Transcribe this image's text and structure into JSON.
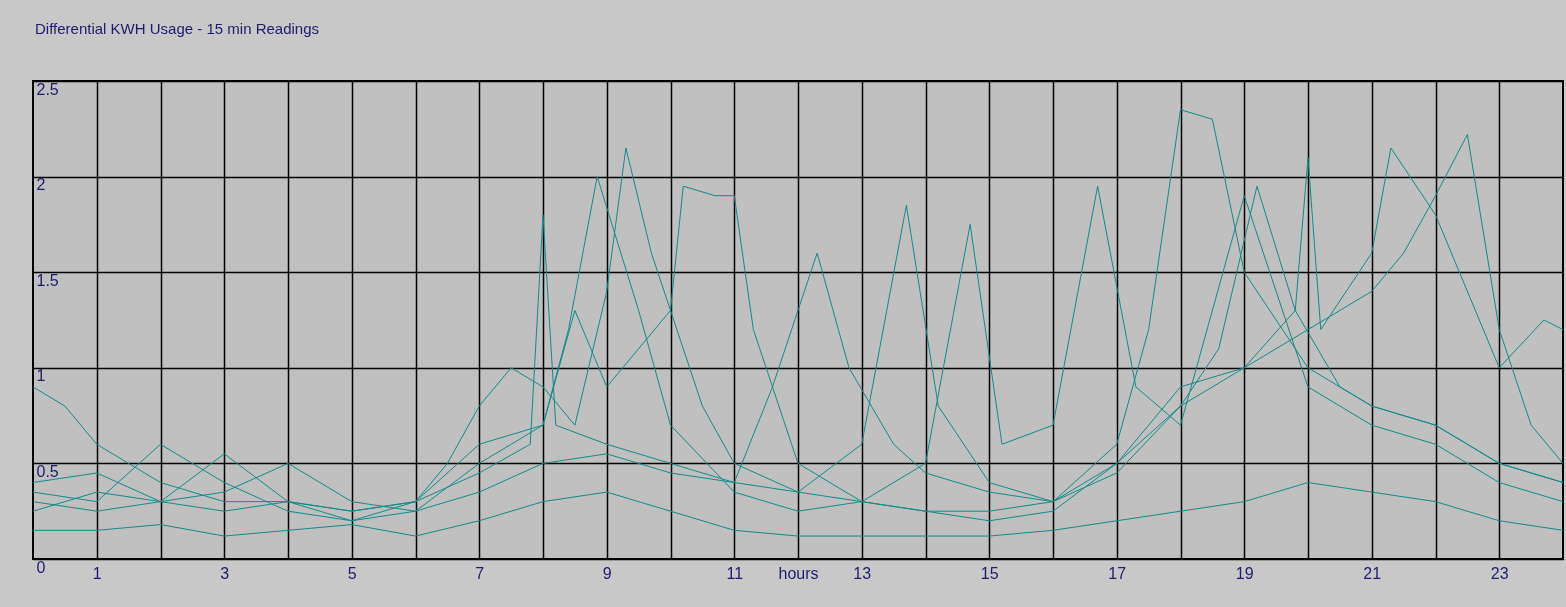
{
  "chart_data": {
    "type": "line",
    "title": "Differential KWH Usage - 15 min Readings",
    "xlabel": "hours",
    "xlim": [
      0,
      24
    ],
    "ylim": [
      0,
      2.5
    ],
    "xticks": [
      1,
      {
        "value": 2,
        "label": null
      },
      3,
      {
        "value": 4,
        "label": null
      },
      5,
      {
        "value": 6,
        "label": null
      },
      7,
      {
        "value": 8,
        "label": null
      },
      9,
      {
        "value": 10,
        "label": null
      },
      11,
      {
        "value": 12,
        "label": null
      },
      13,
      {
        "value": 14,
        "label": null
      },
      15,
      {
        "value": 16,
        "label": null
      },
      17,
      {
        "value": 18,
        "label": null
      },
      19,
      {
        "value": 20,
        "label": null
      },
      21,
      {
        "value": 22,
        "label": null
      },
      23
    ],
    "yticks": [
      0,
      0.5,
      1,
      1.5,
      2,
      2.5
    ],
    "grid": true,
    "legend": false,
    "marker": "none",
    "series": [
      {
        "color": "#138a8a",
        "x": [
          0,
          0.5,
          1,
          2,
          3,
          4,
          5,
          6,
          6.5,
          7,
          7.5,
          8,
          8.5,
          9,
          9.3,
          9.7,
          10.5,
          11,
          12,
          13,
          14,
          15,
          16,
          17,
          17.5,
          18,
          18.5,
          19,
          20,
          21,
          22,
          23,
          24
        ],
        "values": [
          0.9,
          0.8,
          0.6,
          0.4,
          0.3,
          0.3,
          0.25,
          0.3,
          0.5,
          0.8,
          1.0,
          0.9,
          0.7,
          1.4,
          2.15,
          1.6,
          0.8,
          0.5,
          0.35,
          0.3,
          0.25,
          0.25,
          0.3,
          0.6,
          1.2,
          2.35,
          2.3,
          1.5,
          1.0,
          0.8,
          0.7,
          0.5,
          0.4
        ]
      },
      {
        "color": "#138a8a",
        "x": [
          0,
          1,
          2,
          3,
          4,
          5,
          6,
          7,
          7.5,
          8,
          8.5,
          9,
          10,
          10.2,
          10.7,
          11,
          11.3,
          12,
          13,
          14,
          15,
          16,
          17,
          18,
          19,
          20,
          21,
          21.5,
          22,
          22.5,
          23,
          23.5,
          24
        ],
        "values": [
          0.35,
          0.3,
          0.6,
          0.4,
          0.25,
          0.2,
          0.25,
          0.5,
          0.6,
          0.7,
          1.3,
          0.9,
          1.3,
          1.95,
          1.9,
          1.9,
          1.2,
          0.5,
          0.3,
          0.25,
          0.2,
          0.25,
          0.5,
          0.8,
          1.0,
          1.2,
          1.4,
          1.6,
          1.9,
          2.22,
          1.2,
          0.7,
          0.5
        ]
      },
      {
        "color": "#138a8a",
        "x": [
          0,
          1,
          2,
          3,
          4,
          5,
          6,
          7,
          7.8,
          8,
          8.2,
          9,
          10,
          11,
          12,
          13,
          13.7,
          14.2,
          15,
          16,
          17,
          18,
          19,
          19.8,
          20,
          20.2,
          21,
          21.3,
          22,
          23,
          23.7,
          24
        ],
        "values": [
          0.3,
          0.25,
          0.3,
          0.25,
          0.3,
          0.2,
          0.3,
          0.45,
          0.6,
          1.8,
          0.7,
          0.6,
          0.5,
          0.4,
          0.35,
          0.6,
          1.85,
          0.8,
          0.4,
          0.3,
          0.5,
          0.9,
          1.0,
          1.3,
          2.1,
          1.2,
          1.6,
          2.15,
          1.8,
          1.0,
          1.25,
          1.2
        ]
      },
      {
        "color": "#138a8a",
        "x": [
          0,
          1,
          2,
          3,
          4,
          5,
          6,
          7,
          8,
          8.4,
          8.85,
          9.5,
          10,
          11,
          12,
          13,
          14,
          14.7,
          15.2,
          16,
          16.7,
          17.3,
          18,
          19,
          20,
          21,
          22,
          23,
          24
        ],
        "values": [
          0.25,
          0.35,
          0.3,
          0.55,
          0.3,
          0.25,
          0.3,
          0.6,
          0.7,
          1.2,
          2.0,
          1.3,
          0.7,
          0.35,
          0.25,
          0.3,
          0.5,
          1.75,
          0.6,
          0.7,
          1.95,
          0.9,
          0.7,
          1.9,
          0.9,
          0.7,
          0.6,
          0.4,
          0.3
        ]
      },
      {
        "color": "#138a8a",
        "x": [
          0,
          1,
          2,
          3,
          4,
          5,
          6,
          7,
          8,
          9,
          10,
          11,
          12,
          13,
          14,
          15,
          16,
          17,
          18,
          19,
          20,
          21,
          22,
          23,
          24
        ],
        "values": [
          0.15,
          0.15,
          0.18,
          0.12,
          0.15,
          0.18,
          0.12,
          0.2,
          0.3,
          0.35,
          0.25,
          0.15,
          0.12,
          0.12,
          0.12,
          0.12,
          0.15,
          0.2,
          0.25,
          0.3,
          0.4,
          0.35,
          0.3,
          0.2,
          0.15
        ]
      },
      {
        "color": "#138a8a",
        "x": [
          0,
          1,
          2,
          3,
          4,
          5,
          6,
          7,
          8,
          9,
          10,
          11,
          11.6,
          12.3,
          12.8,
          13.5,
          14,
          15,
          16,
          17,
          18,
          18.6,
          19.2,
          19.8,
          20.5,
          21,
          22,
          23,
          24
        ],
        "values": [
          0.4,
          0.45,
          0.3,
          0.35,
          0.5,
          0.3,
          0.25,
          0.35,
          0.5,
          0.55,
          0.45,
          0.4,
          0.9,
          1.6,
          1.0,
          0.6,
          0.45,
          0.35,
          0.3,
          0.45,
          0.8,
          1.1,
          1.95,
          1.3,
          0.9,
          0.8,
          0.7,
          0.5,
          0.4
        ]
      }
    ]
  }
}
